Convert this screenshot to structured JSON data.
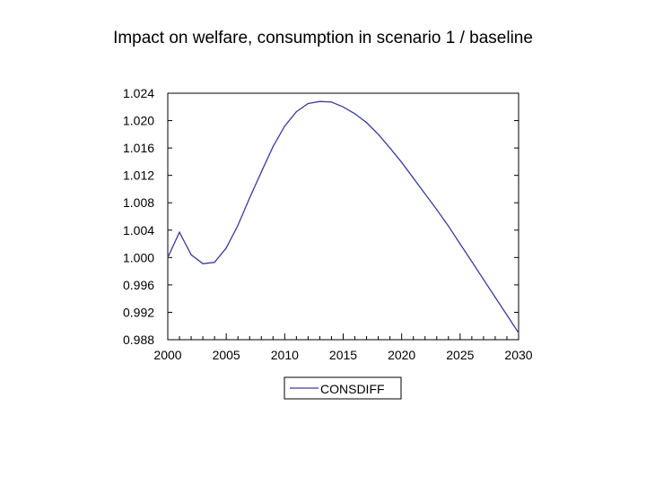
{
  "chart_data": {
    "type": "line",
    "title": "Impact on welfare, consumption in scenario 1 / baseline",
    "xlabel": "",
    "ylabel": "",
    "xlim": [
      2000,
      2030
    ],
    "ylim": [
      0.988,
      1.024
    ],
    "x_ticks": [
      2000,
      2005,
      2010,
      2015,
      2020,
      2025,
      2030
    ],
    "y_ticks": [
      0.988,
      0.992,
      0.996,
      1.0,
      1.004,
      1.008,
      1.012,
      1.016,
      1.02,
      1.024
    ],
    "x_tick_labels": [
      "2000",
      "2005",
      "2010",
      "2015",
      "2020",
      "2025",
      "2030"
    ],
    "y_tick_labels": [
      "0.988",
      "0.992",
      "0.996",
      "1.000",
      "1.004",
      "1.008",
      "1.012",
      "1.016",
      "1.020",
      "1.024"
    ],
    "legend": {
      "position": "bottom-center",
      "entries": [
        "CONSDIFF"
      ]
    },
    "series": [
      {
        "name": "CONSDIFF",
        "color": "#3b3b9e",
        "x": [
          2000,
          2001,
          2002,
          2003,
          2004,
          2005,
          2006,
          2007,
          2008,
          2009,
          2010,
          2011,
          2012,
          2013,
          2014,
          2015,
          2016,
          2017,
          2018,
          2019,
          2020,
          2021,
          2022,
          2023,
          2024,
          2025,
          2026,
          2027,
          2028,
          2029,
          2030
        ],
        "values": [
          1.0,
          1.0037,
          1.0004,
          0.9991,
          0.9993,
          1.0014,
          1.0047,
          1.0087,
          1.0125,
          1.0162,
          1.0192,
          1.0213,
          1.0225,
          1.0228,
          1.0227,
          1.022,
          1.021,
          1.0197,
          1.018,
          1.016,
          1.0139,
          1.0116,
          1.0093,
          1.007,
          1.0046,
          1.002,
          0.9994,
          0.9968,
          0.9942,
          0.9916,
          0.989
        ]
      }
    ]
  }
}
